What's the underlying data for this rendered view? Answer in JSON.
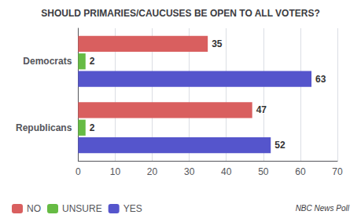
{
  "chart_data": {
    "type": "bar",
    "orientation": "horizontal",
    "title": "SHOULD PRIMARIES/CAUCUSES BE OPEN TO ALL VOTERS?",
    "categories": [
      "Democrats",
      "Republicans"
    ],
    "series": [
      {
        "name": "NO",
        "color": "#d95f5f",
        "values": [
          35,
          47
        ]
      },
      {
        "name": "UNSURE",
        "color": "#66bb44",
        "values": [
          2,
          2
        ]
      },
      {
        "name": "YES",
        "color": "#5555cc",
        "values": [
          63,
          52
        ]
      }
    ],
    "xlim": [
      0,
      70
    ],
    "xticks": [
      0,
      10,
      20,
      30,
      40,
      50,
      60,
      70
    ],
    "grid": true,
    "legend": "lower left",
    "data_labels": true,
    "annotations": [
      "NBC News Poll"
    ]
  }
}
